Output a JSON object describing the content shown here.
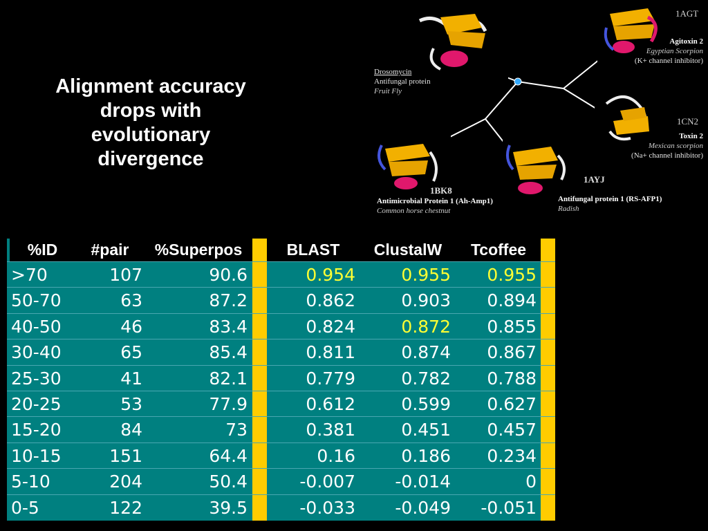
{
  "slide": {
    "title": "Alignment accuracy\ndrops with\nevolutionary\ndivergence"
  },
  "tree": {
    "nodes": [
      {
        "key": "drosomycin",
        "name": "Drosomycin",
        "desc": "Antifungal protein",
        "org": "Fruit Fly"
      },
      {
        "key": "agitoxin",
        "id": "1AGT",
        "name": "Agitoxin 2",
        "org": "Egyptian Scorpion",
        "desc": "(K+ channel inhibitor)"
      },
      {
        "key": "toxin2",
        "id": "1CN2",
        "name": "Toxin 2",
        "org": "Mexican scorpion",
        "desc": "(Na+ channel inhibitor)"
      },
      {
        "key": "ayj",
        "id": "1AYJ",
        "name": "Antifungal protein 1 (RS-AFP1)",
        "org": "Radish"
      },
      {
        "key": "bk8",
        "id": "1BK8",
        "name": "Antimicrobial Protein 1 (Ah-Amp1)",
        "org": "Common horse chestnut"
      }
    ]
  },
  "table": {
    "headers": [
      "%ID",
      "#pair",
      "%Superpos",
      "BLAST",
      "ClustalW",
      "Tcoffee"
    ],
    "rows": [
      [
        ">70",
        "107",
        "90.6",
        "0.954",
        "0.955",
        "0.955"
      ],
      [
        "50-70",
        "63",
        "87.2",
        "0.862",
        "0.903",
        "0.894"
      ],
      [
        "40-50",
        "46",
        "83.4",
        "0.824",
        "0.872",
        "0.855"
      ],
      [
        "30-40",
        "65",
        "85.4",
        "0.811",
        "0.874",
        "0.867"
      ],
      [
        "25-30",
        "41",
        "82.1",
        "0.779",
        "0.782",
        "0.788"
      ],
      [
        "20-25",
        "53",
        "77.9",
        "0.612",
        "0.599",
        "0.627"
      ],
      [
        "15-20",
        "84",
        "73",
        "0.381",
        "0.451",
        "0.457"
      ],
      [
        "10-15",
        "151",
        "64.4",
        "0.16",
        "0.186",
        "0.234"
      ],
      [
        "5-10",
        "204",
        "50.4",
        "-0.007",
        "-0.014",
        "0"
      ],
      [
        "0-5",
        "122",
        "39.5",
        "-0.033",
        "-0.049",
        "-0.051"
      ]
    ],
    "highlighted": [
      [
        0,
        3
      ],
      [
        0,
        4
      ],
      [
        0,
        5
      ],
      [
        2,
        4
      ]
    ]
  },
  "colors": {
    "table_bg": "#008080",
    "separator": "#ffcc00",
    "highlight_text": "#ffff33",
    "text": "#ffffff"
  }
}
